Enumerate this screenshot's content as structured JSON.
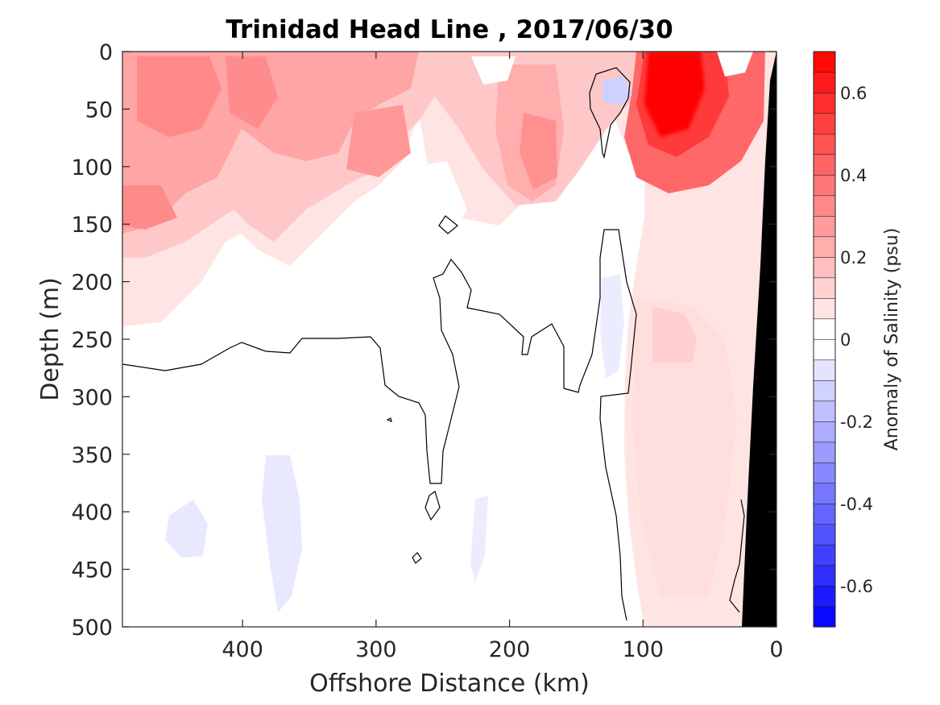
{
  "chart_data": {
    "type": "heatmap",
    "title": "Trinidad Head Line , 2017/06/30",
    "xlabel": "Offshore Distance (km)",
    "ylabel": "Depth (m)",
    "colorbar_label": "Anomaly of Salinity (psu)",
    "xlim": [
      490,
      0
    ],
    "ylim": [
      0,
      500
    ],
    "x_ticks": [
      400,
      300,
      200,
      100,
      0
    ],
    "y_ticks": [
      0,
      50,
      100,
      150,
      200,
      250,
      300,
      350,
      400,
      450,
      500
    ],
    "colorbar_range": [
      -0.7,
      0.7
    ],
    "colorbar_ticks": [
      -0.6,
      -0.4,
      -0.2,
      0,
      0.2,
      0.4,
      0.6
    ],
    "colorbar_step": 0.05,
    "colormap": {
      "negative": "#0000ff",
      "zero": "#ffffff",
      "positive": "#ff0000"
    },
    "contour_level": 0,
    "anomaly_regions": [
      {
        "label": "surface-inshore-maximum",
        "x_range": [
          120,
          40
        ],
        "depth_range": [
          0,
          140
        ],
        "peak_value": 0.65
      },
      {
        "label": "offshore-upper-layer",
        "x_range": [
          490,
          360
        ],
        "depth_range": [
          0,
          240
        ],
        "peak_value": 0.4
      },
      {
        "label": "central-upper-layer",
        "x_range": [
          360,
          140
        ],
        "depth_range": [
          0,
          200
        ],
        "peak_value": 0.3
      },
      {
        "label": "inshore-subsurface",
        "x_range": [
          120,
          40
        ],
        "depth_range": [
          140,
          500
        ],
        "peak_value": 0.15
      },
      {
        "label": "deep-offshore-negative",
        "x_range": [
          450,
          350
        ],
        "depth_range": [
          350,
          480
        ],
        "peak_value": -0.1
      },
      {
        "label": "upper-negative-eddy",
        "x_range": [
          135,
          115
        ],
        "depth_range": [
          25,
          45
        ],
        "peak_value": -0.15
      }
    ]
  }
}
